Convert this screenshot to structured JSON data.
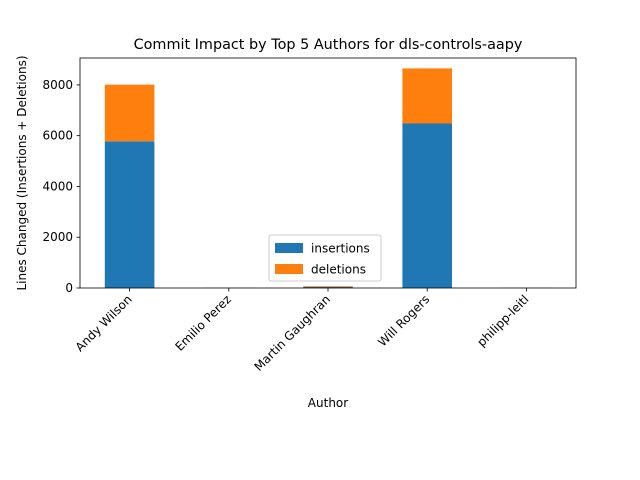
{
  "chart_data": {
    "type": "bar",
    "stacked": true,
    "title": "Commit Impact by Top 5 Authors for dls-controls-aapy",
    "xlabel": "Author",
    "ylabel": "Lines Changed (Insertions + Deletions)",
    "categories": [
      "Andy Wilson",
      "Emilio Perez",
      "Martin Gaughran",
      "Will Rogers",
      "philipp-leitl"
    ],
    "series": [
      {
        "name": "insertions",
        "color": "#1f77b4",
        "values": [
          5780,
          5,
          40,
          6480,
          5
        ]
      },
      {
        "name": "deletions",
        "color": "#ff7f0e",
        "values": [
          2230,
          3,
          30,
          2170,
          3
        ]
      }
    ],
    "ylim": [
      0,
      9060
    ],
    "yticks": [
      0,
      2000,
      4000,
      6000,
      8000
    ],
    "grid": false,
    "legend_position": "lower center"
  }
}
